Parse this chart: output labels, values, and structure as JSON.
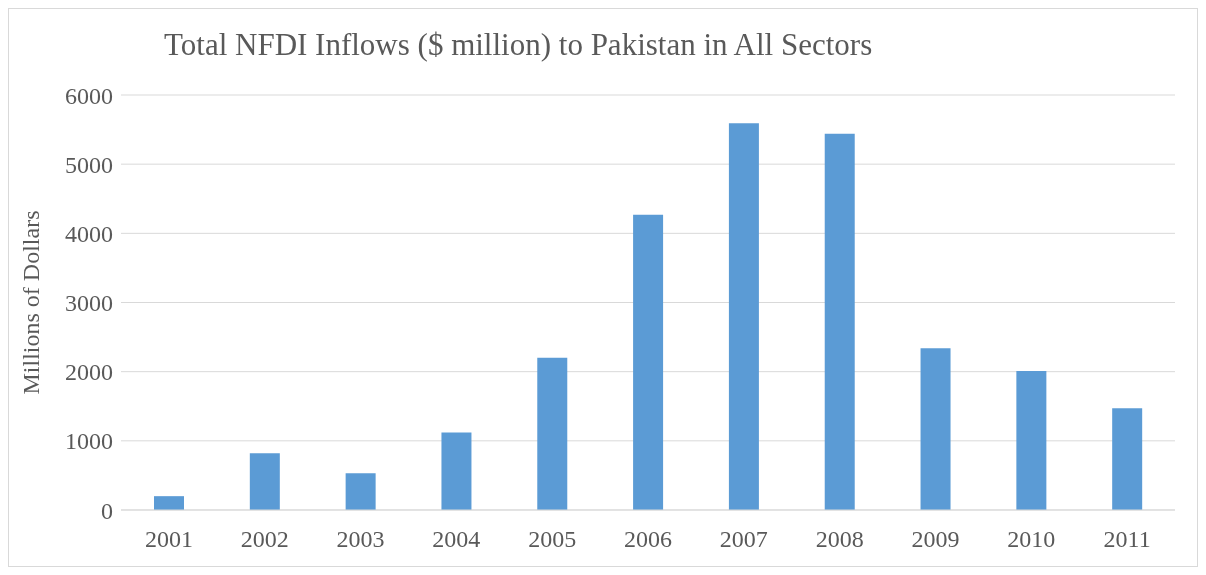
{
  "chart_data": {
    "type": "bar",
    "title": "Total NFDI Inflows ($ million) to Pakistan in All Sectors",
    "ylabel": "Millions of Dollars",
    "categories": [
      "2001",
      "2002",
      "2003",
      "2004",
      "2005",
      "2006",
      "2007",
      "2008",
      "2009",
      "2010",
      "2011"
    ],
    "values": [
      200,
      820,
      530,
      1120,
      2200,
      4270,
      5590,
      5440,
      2340,
      2010,
      1470
    ],
    "color": "#5b9bd5",
    "ylim": [
      0,
      6000
    ],
    "yticks": [
      0,
      1000,
      2000,
      3000,
      4000,
      5000,
      6000
    ],
    "grid": "y"
  }
}
